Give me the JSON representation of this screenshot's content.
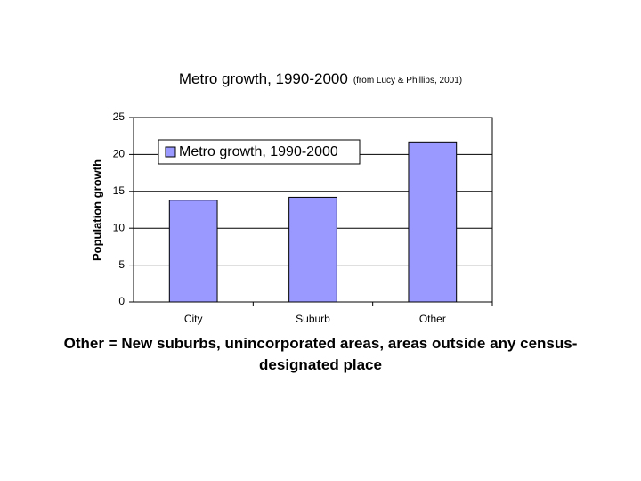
{
  "chart_data": {
    "type": "bar",
    "title": "Metro growth, 1990-2000",
    "subtitle": "(from Lucy & Phillips, 2001)",
    "y_label": "Population growth",
    "categories": [
      "City",
      "Suburb",
      "Other"
    ],
    "series": [
      {
        "name": "Metro growth, 1990-2000",
        "color": "#9999ff",
        "values": [
          13.8,
          14.2,
          21.7
        ]
      }
    ],
    "ylim": [
      0,
      25
    ],
    "yticks": [
      0,
      5,
      10,
      15,
      20,
      25
    ],
    "grid": true,
    "legend": "upper-left"
  },
  "caption": "Other = New suburbs, unincorporated areas, areas outside any census-designated place"
}
